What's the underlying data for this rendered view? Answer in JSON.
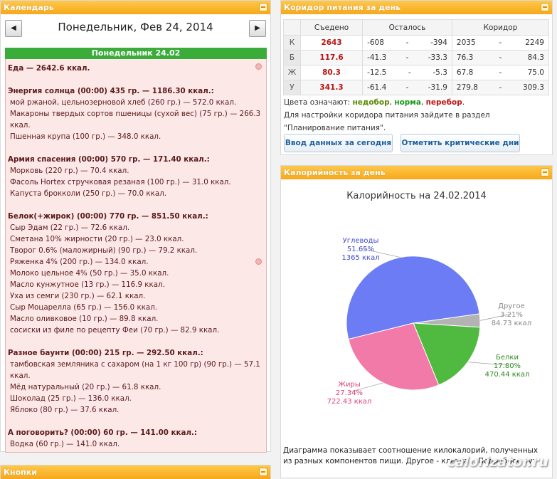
{
  "calendar": {
    "panel_title": "Календарь",
    "prev": "◀",
    "next": "▶",
    "date_title": "Понедельник, Фев 24, 2014",
    "day_header": "Понедельник 24.02",
    "total": "Еда — 2642.6 ккал.",
    "meals": [
      {
        "title": "Энергия солнца (00:00) 435 гр. — 1186.30 ккал.:",
        "items": [
          "мой ржаной, цельнозерновой хлеб (260 гр.) — 572.0 ккал.",
          "Макароны твердых сортов пшеницы (сухой вес) (75 гр.) — 266.3 ккал.",
          "Пшенная крупа (100 гр.) — 348.0 ккал."
        ]
      },
      {
        "title": "Армия спасения (00:00) 570 гр. — 171.40 ккал.:",
        "items": [
          "Морковь (220 гр.) — 70.4 ккал.",
          "Фасоль Hortex стручковая резаная (100 гр.) — 31.0 ккал.",
          "Капуста брокколи (250 гр.) — 70.0 ккал."
        ]
      },
      {
        "title": "Белок(+жирок) (00:00) 770 гр. — 851.50 ккал.:",
        "items": [
          "Сыр Эдам (22 гр.) — 72.6 ккал.",
          "Сметана 10% жирности (20 гр.) — 23.0 ккал.",
          "Творог 0.6% (маложирный) (90 гр.) — 79.2 ккал.",
          "Ряженка 4% (200 гр.) — 134.0 ккал.",
          "Молоко цельное 4% (50 гр.) — 35.0 ккал.",
          "Масло кунжутное (13 гр.) — 116.9 ккал.",
          "Уха из семги (230 гр.) — 62.1 ккал.",
          "Сыр Моцарелла (65 гр.) — 156.0 ккал.",
          "Масло оливковое (10 гр.) — 89.8 ккал.",
          "сосиски из филе по рецепту Феи (70 гр.) — 82.9 ккал."
        ]
      },
      {
        "title": "Разное баунти (00:00) 215 гр. — 292.50 ккал.:",
        "items": [
          "тамбовская земляника с сахаром (на 1 кг 100 гр) (90 гр.) — 57.1 ккал.",
          "Мёд натуральный (20 гр.) — 61.8 ккал.",
          "Шоколад (25 гр.) — 136.0 ккал.",
          "Яблоко (80 гр.) — 37.6 ккал."
        ]
      },
      {
        "title": "А поговорить? (00:00) 60 гр. — 141.00 ккал.:",
        "items": [
          "Водка (60 гр.) — 141.0 ккал."
        ]
      }
    ]
  },
  "buttons_panel": {
    "title": "Кнопки"
  },
  "corridor": {
    "panel_title": "Коридор питания за день",
    "headers": [
      "",
      "Съедено",
      "Осталось",
      "Коридор"
    ],
    "rows": [
      {
        "label": "К",
        "eaten": "2643",
        "left_from": "-608",
        "left_to": "-394",
        "corr_from": "2035",
        "corr_to": "2249"
      },
      {
        "label": "Б",
        "eaten": "117.6",
        "left_from": "-41.3",
        "left_to": "-33.3",
        "corr_from": "76.3",
        "corr_to": "84.3"
      },
      {
        "label": "Ж",
        "eaten": "80.3",
        "left_from": "-12.5",
        "left_to": "-5.3",
        "corr_from": "67.8",
        "corr_to": "75.0"
      },
      {
        "label": "У",
        "eaten": "341.3",
        "left_from": "-61.4",
        "left_to": "-31.9",
        "corr_from": "279.8",
        "corr_to": "309.3"
      }
    ],
    "dash": "-",
    "legend_prefix": "Цвета означают:",
    "legend_low": "недобор",
    "legend_norm": "норма",
    "legend_over": "перебор",
    "info_line1": "Для настройки коридора питания зайдите в раздел",
    "info_line2": "\"Планирование питания\".",
    "btn_today": "Ввод данных за сегодня",
    "btn_critical": "Отметить критические дни"
  },
  "calories_panel": {
    "panel_title": "Калорийность за день",
    "description": "Диаграмма показывает соотношение килокалорий, полученных из разных компонентов пищи. Другое - клетча... Подробнее тут"
  },
  "watermark": "calorizator.ru",
  "chart_data": {
    "type": "pie",
    "title": "Калорийность на 24.02.2014",
    "slices": [
      {
        "name": "Углеводы",
        "percent": 51.65,
        "value_label": "1365 ккал",
        "color": "#6c7cf5"
      },
      {
        "name": "Другое",
        "percent": 3.21,
        "value_label": "84.73 ккал",
        "color": "#b3b3b3"
      },
      {
        "name": "Белки",
        "percent": 17.8,
        "value_label": "470.44 ккал",
        "color": "#4fba3f"
      },
      {
        "name": "Жиры",
        "percent": 27.34,
        "value_label": "722.43 ккал",
        "color": "#f27aa8"
      }
    ]
  }
}
